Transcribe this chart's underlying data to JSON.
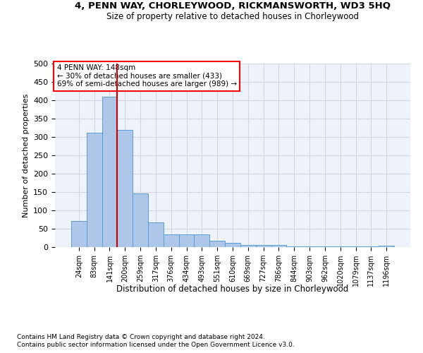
{
  "title_line1": "4, PENN WAY, CHORLEYWOOD, RICKMANSWORTH, WD3 5HQ",
  "title_line2": "Size of property relative to detached houses in Chorleywood",
  "xlabel": "Distribution of detached houses by size in Chorleywood",
  "ylabel": "Number of detached properties",
  "footnote1": "Contains HM Land Registry data © Crown copyright and database right 2024.",
  "footnote2": "Contains public sector information licensed under the Open Government Licence v3.0.",
  "annotation_line1": "4 PENN WAY: 148sqm",
  "annotation_line2": "← 30% of detached houses are smaller (433)",
  "annotation_line3": "69% of semi-detached houses are larger (989) →",
  "bar_color": "#aec6e8",
  "bar_edge_color": "#5b9bd5",
  "vline_color": "#cc0000",
  "vline_x": 2.5,
  "categories": [
    "24sqm",
    "83sqm",
    "141sqm",
    "200sqm",
    "259sqm",
    "317sqm",
    "376sqm",
    "434sqm",
    "493sqm",
    "551sqm",
    "610sqm",
    "669sqm",
    "727sqm",
    "786sqm",
    "844sqm",
    "903sqm",
    "962sqm",
    "1020sqm",
    "1079sqm",
    "1137sqm",
    "1196sqm"
  ],
  "values": [
    72,
    312,
    410,
    320,
    147,
    68,
    35,
    35,
    35,
    18,
    12,
    6,
    6,
    6,
    1,
    1,
    1,
    1,
    1,
    1,
    4
  ],
  "ylim": [
    0,
    500
  ],
  "yticks": [
    0,
    50,
    100,
    150,
    200,
    250,
    300,
    350,
    400,
    450,
    500
  ],
  "grid_color": "#d0d8e8",
  "background_color": "#eef2fa",
  "fig_background": "#ffffff"
}
